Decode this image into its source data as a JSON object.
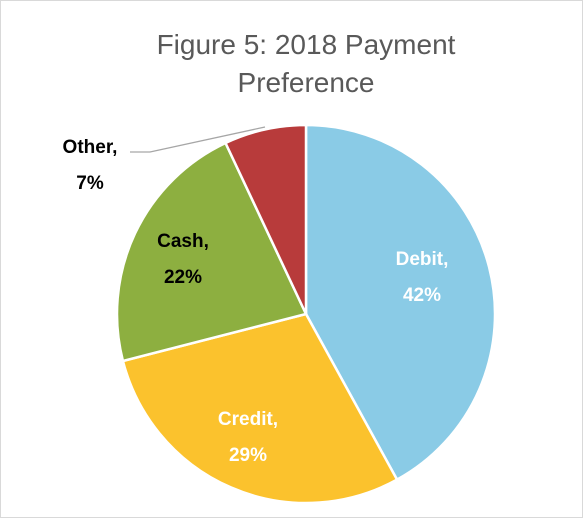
{
  "chart_data": {
    "type": "pie",
    "title": "Figure 5: 2018 Payment Preference",
    "categories": [
      "Debit,",
      "Credit,",
      "Cash,",
      "Other,"
    ],
    "values": [
      42,
      29,
      22,
      7
    ],
    "value_labels": [
      "42%",
      "29%",
      "22%",
      "7%"
    ],
    "colors": [
      "#8ACBE6",
      "#FBC22D",
      "#8DAF40",
      "#B83B3B"
    ]
  }
}
